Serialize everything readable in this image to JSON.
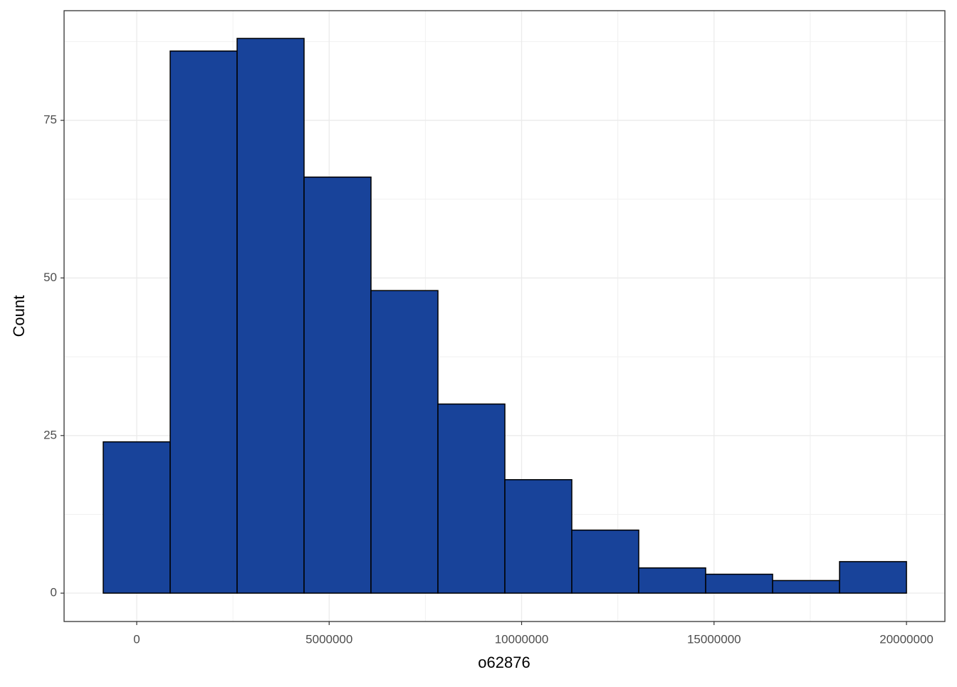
{
  "chart_data": {
    "type": "histogram",
    "x_label": "o62876",
    "y_label": "Count",
    "bins": [
      -869565,
      869565,
      2608696,
      4347826,
      6086957,
      7826087,
      9565217,
      11304348,
      13043478,
      14782609,
      16521739,
      18260870,
      20000000
    ],
    "values": [
      24,
      86,
      88,
      66,
      48,
      30,
      18,
      10,
      4,
      3,
      2,
      5
    ],
    "color": "#18439a",
    "edge_color": "#000000",
    "xlim": [
      -1887000,
      20998000
    ],
    "xticks": [
      0,
      5000000,
      10000000,
      15000000,
      20000000
    ],
    "ylim": [
      -4.5,
      92.4
    ],
    "yticks": [
      0,
      25,
      50,
      75
    ],
    "grid": true
  }
}
